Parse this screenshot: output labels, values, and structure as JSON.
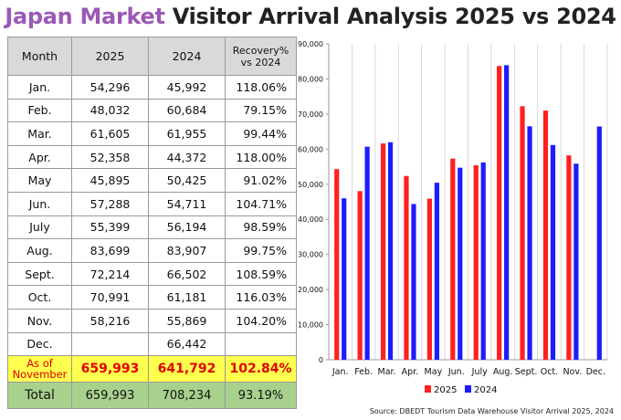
{
  "title": {
    "highlight": "Japan Market",
    "rest": "Visitor Arrival Analysis 2025 vs 2024",
    "highlight_color": "#9b59b6"
  },
  "table": {
    "headers": {
      "month": "Month",
      "y2025": "2025",
      "y2024": "2024",
      "recovery_1": "Recovery%",
      "recovery_2": "vs 2024"
    },
    "rows": [
      {
        "month": "Jan.",
        "y2025": "54,296",
        "y2024": "45,992",
        "recovery": "118.06%"
      },
      {
        "month": "Feb.",
        "y2025": "48,032",
        "y2024": "60,684",
        "recovery": "79.15%"
      },
      {
        "month": "Mar.",
        "y2025": "61,605",
        "y2024": "61,955",
        "recovery": "99.44%"
      },
      {
        "month": "Apr.",
        "y2025": "52,358",
        "y2024": "44,372",
        "recovery": "118.00%"
      },
      {
        "month": "May",
        "y2025": "45,895",
        "y2024": "50,425",
        "recovery": "91.02%"
      },
      {
        "month": "Jun.",
        "y2025": "57,288",
        "y2024": "54,711",
        "recovery": "104.71%"
      },
      {
        "month": "July",
        "y2025": "55,399",
        "y2024": "56,194",
        "recovery": "98.59%"
      },
      {
        "month": "Aug.",
        "y2025": "83,699",
        "y2024": "83,907",
        "recovery": "99.75%"
      },
      {
        "month": "Sept.",
        "y2025": "72,214",
        "y2024": "66,502",
        "recovery": "108.59%"
      },
      {
        "month": "Oct.",
        "y2025": "70,991",
        "y2024": "61,181",
        "recovery": "116.03%"
      },
      {
        "month": "Nov.",
        "y2025": "58,216",
        "y2024": "55,869",
        "recovery": "104.20%"
      },
      {
        "month": "Dec.",
        "y2025": "",
        "y2024": "66,442",
        "recovery": ""
      }
    ],
    "as_of": {
      "label_1": "As of",
      "label_2": "November",
      "y2025": "659,993",
      "y2024": "641,792",
      "recovery": "102.84%"
    },
    "total": {
      "label": "Total",
      "y2025": "659,993",
      "y2024": "708,234",
      "recovery": "93.19%"
    },
    "colors": {
      "header_bg": "#d9d9d9",
      "asof_bg": "#ffff4d",
      "asof_text": "#e00000",
      "total_bg": "#a9d18e"
    }
  },
  "chart_data": {
    "type": "bar",
    "categories": [
      "Jan.",
      "Feb.",
      "Mar.",
      "Apr.",
      "May",
      "Jun.",
      "July",
      "Aug.",
      "Sept.",
      "Oct.",
      "Nov.",
      "Dec."
    ],
    "series": [
      {
        "name": "2025",
        "color": "#ff2020",
        "values": [
          54296,
          48032,
          61605,
          52358,
          45895,
          57288,
          55399,
          83699,
          72214,
          70991,
          58216,
          null
        ]
      },
      {
        "name": "2024",
        "color": "#1c1cff",
        "values": [
          45992,
          60684,
          61955,
          44372,
          50425,
          54711,
          56194,
          83907,
          66502,
          61181,
          55869,
          66442
        ]
      }
    ],
    "ylim": [
      0,
      90000
    ],
    "yticks": [
      0,
      10000,
      20000,
      30000,
      40000,
      50000,
      60000,
      70000,
      80000,
      90000
    ],
    "ytick_labels": [
      "0",
      "10,000",
      "20,000",
      "30,000",
      "40,000",
      "50,000",
      "60,000",
      "70,000",
      "80,000",
      "90,000"
    ],
    "grid": "vertical",
    "legend": "bottom-center",
    "xlabel": "",
    "ylabel": ""
  },
  "source": "Source: DBEDT Tourism Data Warehouse Visitor Arrival 2025, 2024"
}
